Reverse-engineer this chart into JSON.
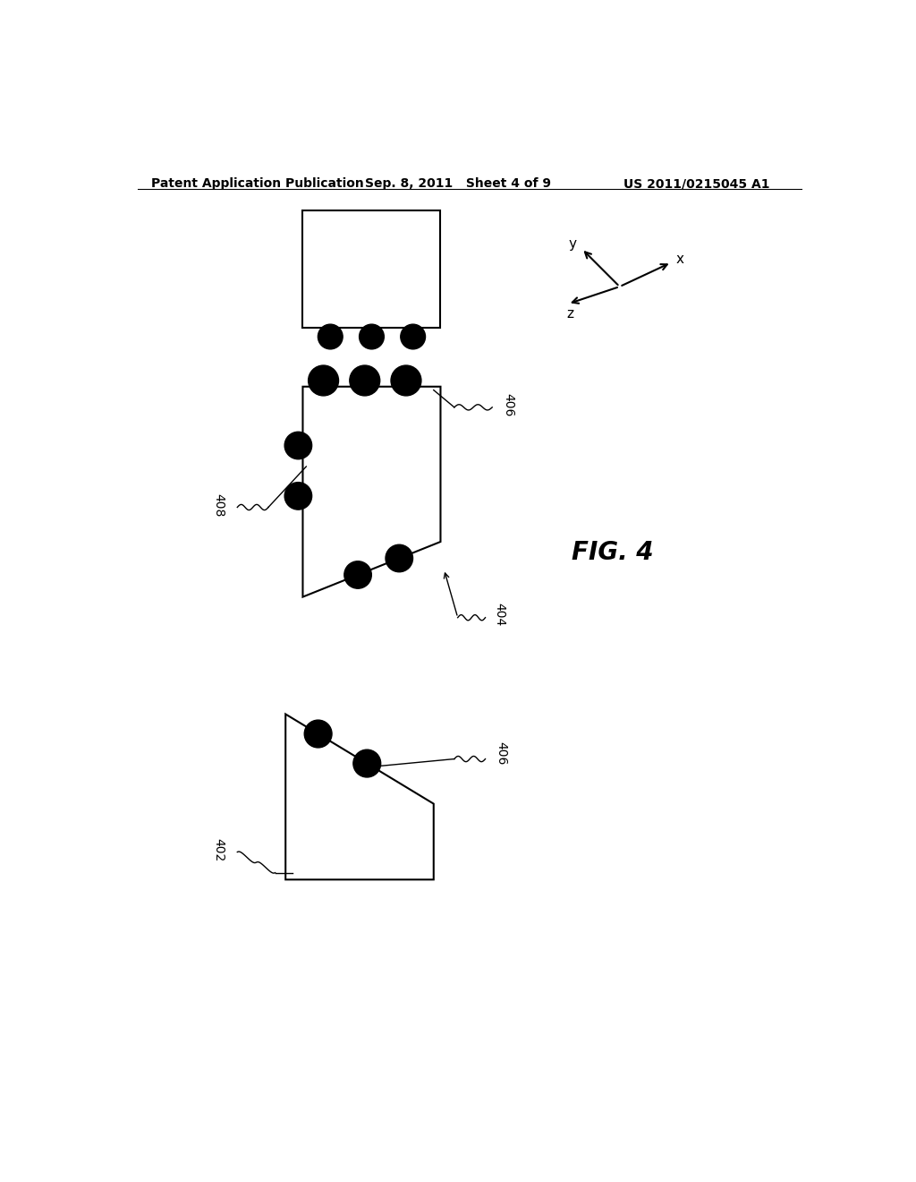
{
  "bg_color": "#ffffff",
  "header_left": "Patent Application Publication",
  "header_mid": "Sep. 8, 2011   Sheet 4 of 9",
  "header_right": "US 2011/0215045 A1",
  "fig_label": "FIG. 4"
}
